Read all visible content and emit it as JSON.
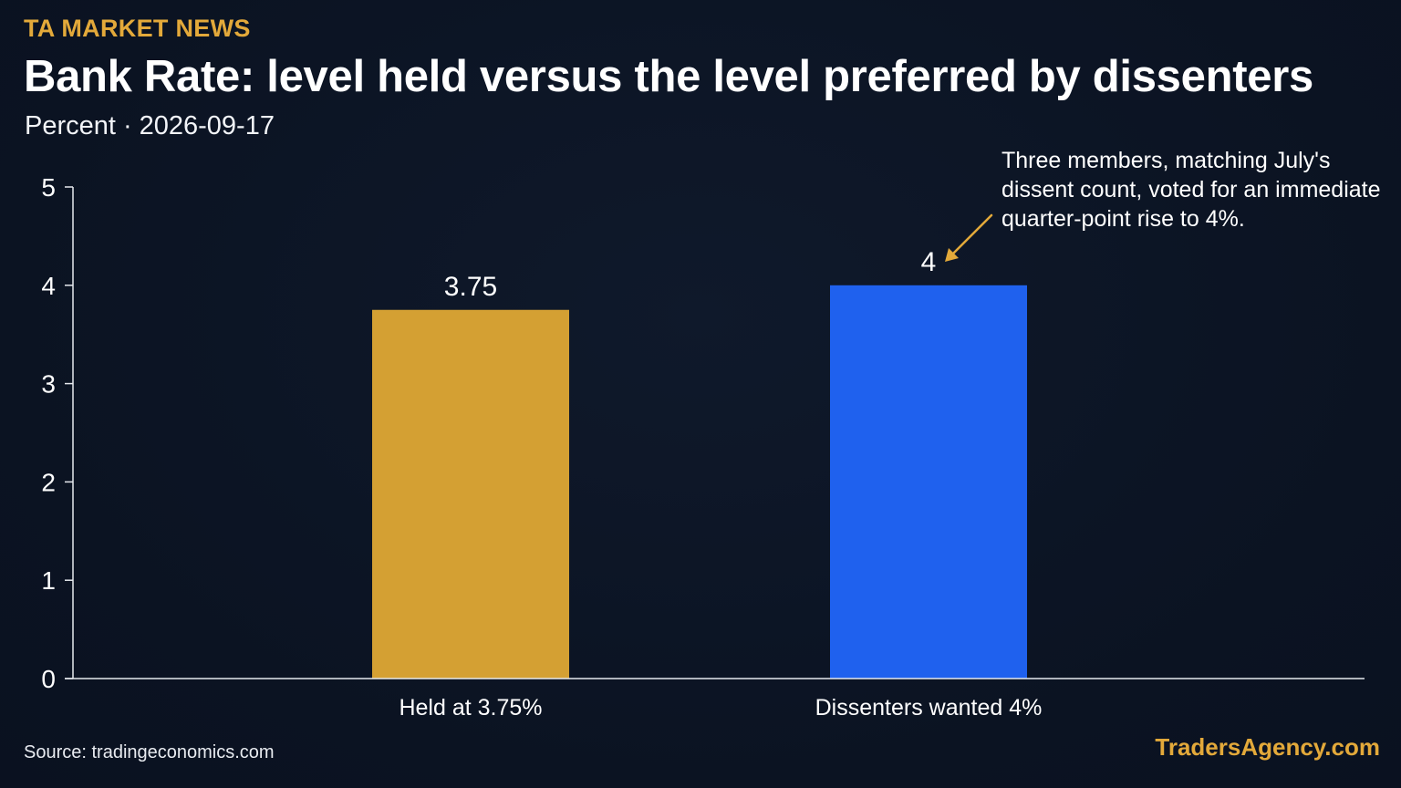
{
  "header": {
    "brand": "TA MARKET NEWS",
    "title": "Bank Rate: level held versus the level preferred by dissenters",
    "unit": "Percent",
    "separator": "·",
    "date": "2026-09-17"
  },
  "footer": {
    "source": "Source: tradingeconomics.com",
    "site": "TradersAgency.com"
  },
  "colors": {
    "background": "#0b1322",
    "held_bar": "#d4a033",
    "dissent_bar": "#1f61ee",
    "annotation_arrow": "#e3a93a",
    "brand": "#e3a93a"
  },
  "chart_data": {
    "type": "bar",
    "categories": [
      "Held at 3.75%",
      "Dissenters wanted 4%"
    ],
    "values": [
      3.75,
      4
    ],
    "value_labels": [
      "3.75",
      "4"
    ],
    "bar_colors": [
      "#d4a033",
      "#1f61ee"
    ],
    "ylim": [
      0,
      5
    ],
    "yticks": [
      0,
      1,
      2,
      3,
      4,
      5
    ],
    "grid": false,
    "annotation": {
      "text": "Three members, matching July's dissent count, voted for an immediate quarter-point rise to 4%.",
      "target_category": "Dissenters wanted 4%"
    }
  }
}
